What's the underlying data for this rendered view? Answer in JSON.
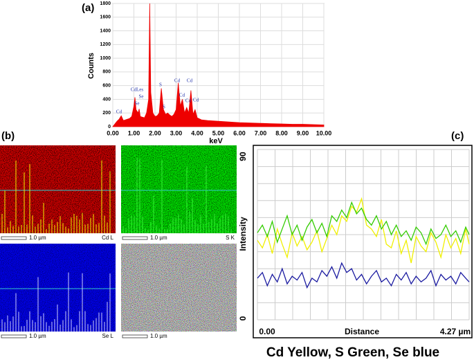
{
  "panel_labels": [
    "(a)",
    "(b)",
    "(c)"
  ],
  "maps": [
    {
      "scale": "1.0 µm",
      "label": "Cd L"
    },
    {
      "scale": "1.0 µm",
      "label": "S K"
    },
    {
      "scale": "1.0 µm",
      "label": "Se L"
    },
    {
      "scale": "1.0 µm"
    }
  ],
  "caption": "Cd Yellow, S Green, Se blue",
  "chart_data": [
    {
      "type": "area",
      "y_label": "Counts",
      "x_label": "keV",
      "annotations": [
        "Cd",
        "CdLes",
        "Se",
        "Se",
        "S",
        "Cd",
        "S",
        "Cd",
        "Cd",
        "Cd",
        "Cd"
      ],
      "x": [
        0,
        0.1,
        0.2,
        0.3,
        0.4,
        0.5,
        0.6,
        0.7,
        0.8,
        0.9,
        1.0,
        1.05,
        1.1,
        1.2,
        1.25,
        1.3,
        1.4,
        1.5,
        1.6,
        1.7,
        1.75,
        1.8,
        1.9,
        2.0,
        2.1,
        2.2,
        2.3,
        2.4,
        2.5,
        2.6,
        2.7,
        2.8,
        2.9,
        3.0,
        3.1,
        3.2,
        3.3,
        3.4,
        3.5,
        3.6,
        3.7,
        3.8,
        3.9,
        4.0,
        4.2,
        4.5,
        5.0,
        5.5,
        6.0,
        6.5,
        7.0,
        7.5,
        8.0,
        8.5,
        9.0,
        9.5,
        10.0
      ],
      "values": [
        0,
        40,
        80,
        110,
        160,
        90,
        100,
        110,
        120,
        150,
        300,
        430,
        250,
        200,
        260,
        150,
        140,
        130,
        200,
        400,
        1800,
        500,
        200,
        150,
        160,
        200,
        560,
        250,
        180,
        200,
        170,
        150,
        180,
        250,
        640,
        300,
        400,
        200,
        280,
        200,
        530,
        180,
        250,
        130,
        100,
        90,
        80,
        70,
        60,
        55,
        50,
        45,
        40,
        35,
        35,
        30,
        25
      ],
      "color": "#ee0000",
      "xlim": [
        0,
        10
      ],
      "ylim": [
        0,
        1800
      ],
      "xticks": [
        {
          "value": 0,
          "label": "0.00"
        },
        {
          "value": 1,
          "label": "1.00"
        },
        {
          "value": 2,
          "label": "2.00"
        },
        {
          "value": 3,
          "label": "3.00"
        },
        {
          "value": 4,
          "label": "4.00"
        },
        {
          "value": 5,
          "label": "5.00"
        },
        {
          "value": 6,
          "label": "6.00"
        },
        {
          "value": 7,
          "label": "7.00"
        },
        {
          "value": 8,
          "label": "8.00"
        },
        {
          "value": 9,
          "label": "9.00"
        },
        {
          "value": 10,
          "label": "10.00"
        }
      ],
      "yticks": [
        0,
        200,
        400,
        600,
        800,
        1000,
        1200,
        1400,
        1600,
        1800
      ],
      "grid": true
    },
    {
      "type": "line",
      "y_label": "Intensity",
      "x_label": "Distance",
      "x": [
        0,
        0.1,
        0.2,
        0.3,
        0.4,
        0.5,
        0.6,
        0.7,
        0.8,
        0.9,
        1.0,
        1.1,
        1.2,
        1.3,
        1.4,
        1.5,
        1.6,
        1.7,
        1.8,
        1.9,
        2.0,
        2.1,
        2.2,
        2.3,
        2.4,
        2.5,
        2.6,
        2.7,
        2.8,
        2.9,
        3.0,
        3.1,
        3.2,
        3.3,
        3.4,
        3.5,
        3.6,
        3.7,
        3.8,
        3.9,
        4.0,
        4.1,
        4.2,
        4.27
      ],
      "series": [
        {
          "color": "#f0f000",
          "values": [
            42,
            38,
            45,
            35,
            48,
            40,
            33,
            46,
            39,
            44,
            37,
            41,
            47,
            36,
            43,
            50,
            45,
            55,
            52,
            60,
            57,
            64,
            50,
            48,
            44,
            53,
            40,
            38,
            47,
            35,
            42,
            30,
            44,
            39,
            36,
            46,
            41,
            33,
            45,
            38,
            43,
            35,
            48,
            40
          ]
        },
        {
          "color": "#33cc00",
          "values": [
            46,
            50,
            44,
            52,
            41,
            48,
            55,
            45,
            50,
            42,
            49,
            53,
            46,
            51,
            44,
            55,
            52,
            58,
            54,
            62,
            56,
            59,
            53,
            50,
            55,
            48,
            52,
            45,
            50,
            44,
            47,
            42,
            49,
            46,
            40,
            48,
            43,
            45,
            50,
            44,
            47,
            41,
            49,
            45
          ]
        },
        {
          "color": "#1a1aa0",
          "values": [
            22,
            25,
            18,
            24,
            20,
            27,
            19,
            23,
            21,
            25,
            17,
            22,
            20,
            26,
            23,
            28,
            22,
            30,
            25,
            27,
            21,
            24,
            19,
            23,
            26,
            20,
            22,
            18,
            24,
            21,
            25,
            19,
            23,
            20,
            22,
            26,
            18,
            24,
            21,
            23,
            19,
            25,
            22,
            20
          ]
        }
      ],
      "xlim": [
        0,
        4.27
      ],
      "ylim": [
        0,
        90
      ],
      "xticks": [
        {
          "value": 0,
          "label": "0.00"
        },
        {
          "value": 4.27,
          "label": "4.27 µm"
        }
      ],
      "yticks": [
        0,
        90
      ],
      "grid": true
    }
  ]
}
